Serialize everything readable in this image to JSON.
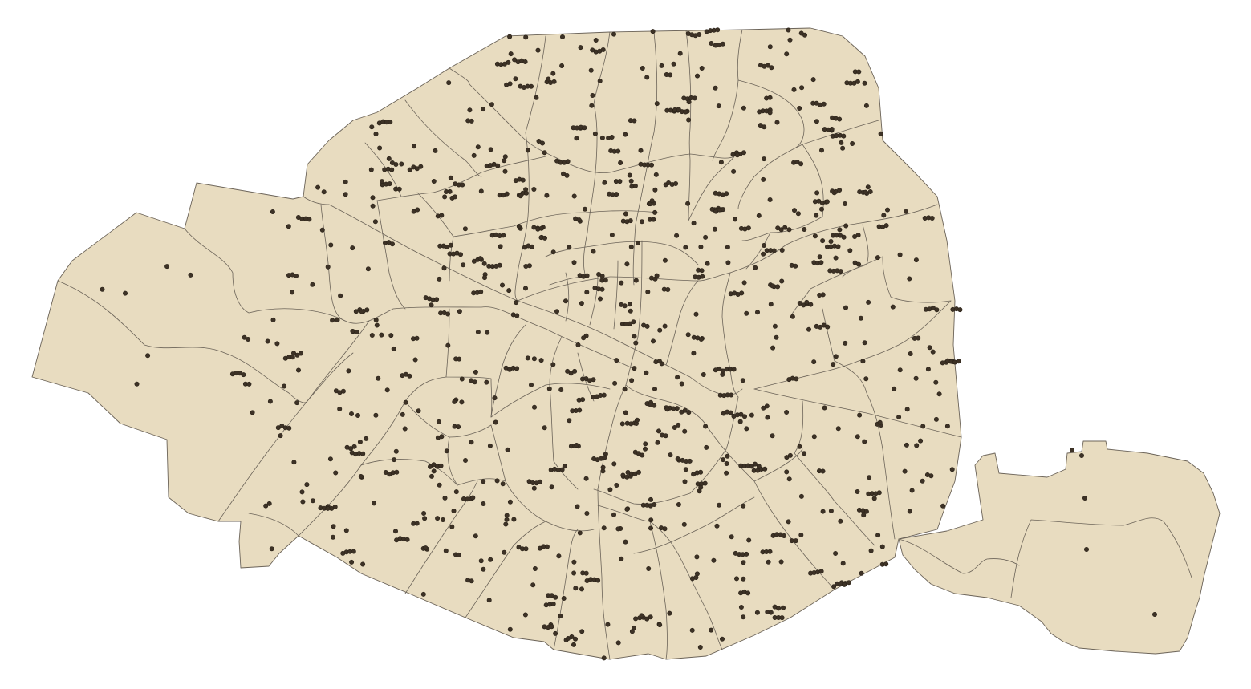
{
  "map": {
    "land_color": "#e8dcc0",
    "border_color": "#6b6358",
    "point_color": "#3d3226",
    "point_outline": "#2a2218",
    "background": "#ffffff",
    "point_count_note": ""
  }
}
